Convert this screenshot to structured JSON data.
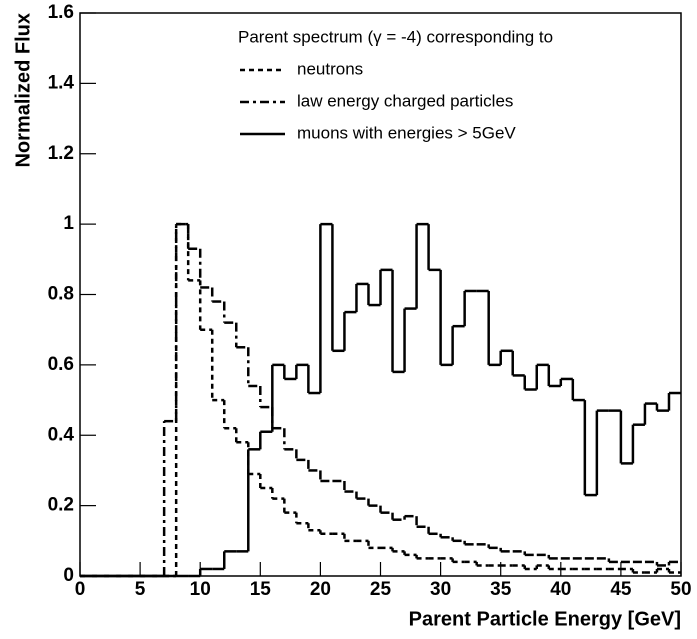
{
  "chart_data": {
    "type": "histogram",
    "xlabel": "Parent Particle Energy [GeV]",
    "ylabel": "Normalized Flux",
    "legend_title": "Parent spectrum (γ = -4) corresponding to",
    "legend": "upper right",
    "bins": [
      0,
      1,
      2,
      3,
      4,
      5,
      6,
      7,
      8,
      9,
      10,
      11,
      12,
      13,
      14,
      15,
      16,
      17,
      18,
      19,
      20,
      21,
      22,
      23,
      24,
      25,
      26,
      27,
      28,
      29,
      30,
      31,
      32,
      33,
      34,
      35,
      36,
      37,
      38,
      39,
      40,
      41,
      42,
      43,
      44,
      45,
      46,
      47,
      48,
      49,
      50
    ],
    "series": [
      {
        "name": "neutrons",
        "color": "#000000",
        "dash": "dashed",
        "values": [
          0,
          0,
          0,
          0,
          0,
          0,
          0,
          0,
          1.0,
          0.84,
          0.7,
          0.5,
          0.42,
          0.38,
          0.29,
          0.25,
          0.22,
          0.18,
          0.15,
          0.13,
          0.12,
          0.12,
          0.1,
          0.1,
          0.08,
          0.08,
          0.07,
          0.06,
          0.05,
          0.05,
          0.05,
          0.04,
          0.04,
          0.03,
          0.03,
          0.03,
          0.03,
          0.02,
          0.03,
          0.02,
          0.02,
          0.02,
          0.02,
          0.02,
          0.02,
          0.02,
          0.01,
          0.01,
          0.02,
          0.01
        ]
      },
      {
        "name": "law energy charged particles",
        "color": "#000000",
        "dash": "dashdot",
        "values": [
          0,
          0,
          0,
          0,
          0,
          0,
          0,
          0.44,
          1.0,
          0.93,
          0.82,
          0.78,
          0.72,
          0.65,
          0.54,
          0.48,
          0.42,
          0.36,
          0.33,
          0.3,
          0.27,
          0.27,
          0.24,
          0.22,
          0.2,
          0.18,
          0.16,
          0.17,
          0.14,
          0.12,
          0.11,
          0.1,
          0.09,
          0.09,
          0.08,
          0.07,
          0.07,
          0.06,
          0.06,
          0.05,
          0.05,
          0.05,
          0.05,
          0.05,
          0.04,
          0.04,
          0.04,
          0.04,
          0.03,
          0.04
        ]
      },
      {
        "name": "muons with energies > 5GeV",
        "color": "#000000",
        "dash": "solid",
        "values": [
          0,
          0,
          0,
          0,
          0,
          0,
          0,
          0,
          0,
          0,
          0.02,
          0.02,
          0.07,
          0.07,
          0.36,
          0.41,
          0.6,
          0.56,
          0.6,
          0.52,
          1.0,
          0.64,
          0.75,
          0.83,
          0.77,
          0.87,
          0.58,
          0.76,
          1.0,
          0.87,
          0.6,
          0.71,
          0.81,
          0.81,
          0.6,
          0.64,
          0.57,
          0.53,
          0.6,
          0.54,
          0.56,
          0.5,
          0.23,
          0.47,
          0.47,
          0.32,
          0.43,
          0.49,
          0.47,
          0.52
        ]
      }
    ],
    "xlim": [
      0,
      50
    ],
    "xticks": [
      0,
      5,
      10,
      15,
      20,
      25,
      30,
      35,
      40,
      45,
      50
    ],
    "ylim": [
      0,
      1.6
    ],
    "yticks": [
      0,
      0.2,
      0.4,
      0.6,
      0.8,
      1,
      1.2,
      1.4,
      1.6
    ]
  }
}
